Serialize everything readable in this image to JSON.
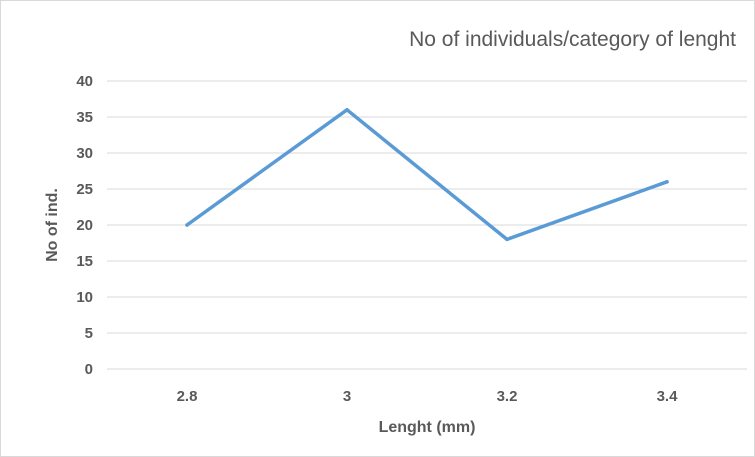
{
  "chart_data": {
    "type": "line",
    "title": "No of individuals/category of lenght",
    "xlabel": "Lenght (mm)",
    "ylabel": "No of ind.",
    "categories": [
      "2.8",
      "3",
      "3.2",
      "3.4"
    ],
    "series": [
      {
        "values": [
          20,
          36,
          18,
          26
        ]
      }
    ],
    "ylim": [
      0,
      40
    ],
    "yticks": [
      0,
      5,
      10,
      15,
      20,
      25,
      30,
      35,
      40
    ],
    "grid": true,
    "legend": "none",
    "colors": {
      "series": "#5b9bd5",
      "grid": "#d9d9d9",
      "text": "#595959"
    }
  }
}
